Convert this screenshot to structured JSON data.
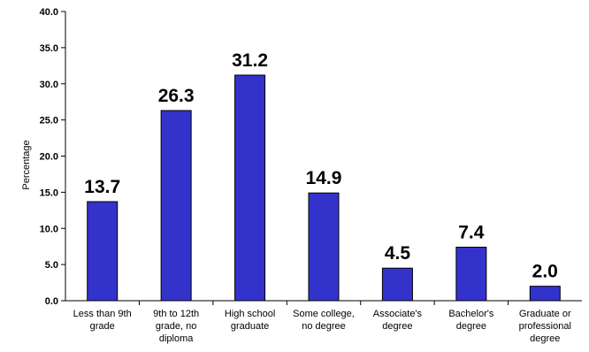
{
  "chart_data": {
    "type": "bar",
    "ylabel": "Percentage",
    "xlabel": "",
    "ylim": [
      0,
      40
    ],
    "ytick_step": 5,
    "ytick_labels": [
      "0.0",
      "5.0",
      "10.0",
      "15.0",
      "20.0",
      "25.0",
      "30.0",
      "35.0",
      "40.0"
    ],
    "categories": [
      [
        "Less than 9th",
        "grade"
      ],
      [
        "9th to 12th",
        "grade, no",
        "diploma"
      ],
      [
        "High school",
        "graduate"
      ],
      [
        "Some college,",
        "no degree"
      ],
      [
        "Associate's",
        "degree"
      ],
      [
        "Bachelor's",
        "degree"
      ],
      [
        "Graduate or",
        "professional",
        "degree"
      ]
    ],
    "values": [
      13.7,
      26.3,
      31.2,
      14.9,
      4.5,
      7.4,
      2.0
    ],
    "data_labels": [
      "13.7",
      "26.3",
      "31.2",
      "14.9",
      "4.5",
      "7.4",
      "2.0"
    ],
    "grid": false,
    "legend": "none",
    "bar_color": "#3333cc",
    "bar_outline": "#000000"
  }
}
